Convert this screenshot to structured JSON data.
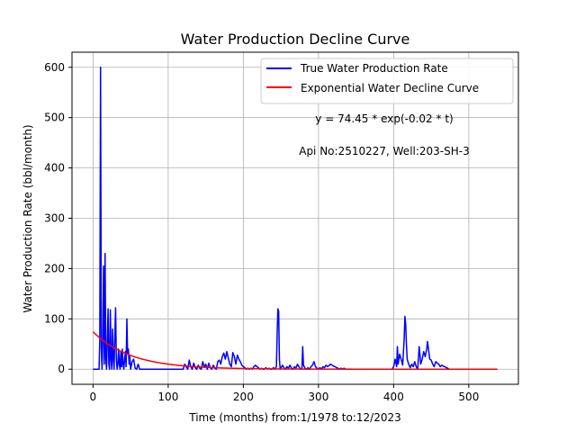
{
  "chart_data": {
    "type": "line",
    "title": "Water Production Decline Curve",
    "xlabel": "Time (months) from:1/1978 to:12/2023",
    "ylabel": "Water Production Rate (bbl/month)",
    "xlim": [
      -28,
      566
    ],
    "ylim": [
      -30,
      630
    ],
    "xticks": [
      0,
      100,
      200,
      300,
      400,
      500
    ],
    "yticks": [
      0,
      100,
      200,
      300,
      400,
      500,
      600
    ],
    "grid": true,
    "legend_position": "top-right",
    "annotations": [
      "y = 74.45 * exp(-0.02 * t)",
      "Api No:2510227, Well:203-SH-3"
    ],
    "series": [
      {
        "name": "True Water Production Rate",
        "color": "#0000ff",
        "kind": "observed",
        "points": [
          [
            0,
            0
          ],
          [
            8,
            0
          ],
          [
            9,
            60
          ],
          [
            10,
            600
          ],
          [
            11,
            40
          ],
          [
            12,
            0
          ],
          [
            13,
            60
          ],
          [
            14,
            205
          ],
          [
            15,
            10
          ],
          [
            16,
            230
          ],
          [
            17,
            20
          ],
          [
            18,
            0
          ],
          [
            19,
            60
          ],
          [
            20,
            120
          ],
          [
            21,
            10
          ],
          [
            22,
            0
          ],
          [
            23,
            118
          ],
          [
            24,
            20
          ],
          [
            25,
            0
          ],
          [
            26,
            80
          ],
          [
            27,
            20
          ],
          [
            28,
            0
          ],
          [
            29,
            65
          ],
          [
            30,
            122
          ],
          [
            31,
            20
          ],
          [
            32,
            0
          ],
          [
            33,
            10
          ],
          [
            34,
            40
          ],
          [
            35,
            10
          ],
          [
            36,
            0
          ],
          [
            37,
            35
          ],
          [
            38,
            5
          ],
          [
            39,
            40
          ],
          [
            40,
            10
          ],
          [
            41,
            0
          ],
          [
            42,
            20
          ],
          [
            43,
            35
          ],
          [
            44,
            5
          ],
          [
            45,
            100
          ],
          [
            46,
            30
          ],
          [
            47,
            40
          ],
          [
            48,
            10
          ],
          [
            49,
            25
          ],
          [
            50,
            0
          ],
          [
            52,
            15
          ],
          [
            54,
            20
          ],
          [
            56,
            2
          ],
          [
            58,
            0
          ],
          [
            60,
            10
          ],
          [
            62,
            0
          ],
          [
            64,
            0
          ],
          [
            120,
            0
          ],
          [
            122,
            10
          ],
          [
            124,
            5
          ],
          [
            126,
            0
          ],
          [
            128,
            18
          ],
          [
            130,
            5
          ],
          [
            132,
            0
          ],
          [
            134,
            12
          ],
          [
            136,
            3
          ],
          [
            138,
            0
          ],
          [
            140,
            8
          ],
          [
            142,
            2
          ],
          [
            144,
            0
          ],
          [
            146,
            15
          ],
          [
            148,
            4
          ],
          [
            150,
            10
          ],
          [
            152,
            0
          ],
          [
            154,
            12
          ],
          [
            156,
            3
          ],
          [
            158,
            0
          ],
          [
            160,
            8
          ],
          [
            162,
            2
          ],
          [
            164,
            0
          ],
          [
            166,
            15
          ],
          [
            168,
            18
          ],
          [
            170,
            10
          ],
          [
            172,
            25
          ],
          [
            174,
            32
          ],
          [
            176,
            20
          ],
          [
            178,
            35
          ],
          [
            180,
            22
          ],
          [
            182,
            10
          ],
          [
            184,
            5
          ],
          [
            186,
            33
          ],
          [
            188,
            25
          ],
          [
            190,
            10
          ],
          [
            192,
            28
          ],
          [
            194,
            20
          ],
          [
            196,
            15
          ],
          [
            198,
            8
          ],
          [
            200,
            5
          ],
          [
            202,
            3
          ],
          [
            204,
            0
          ],
          [
            206,
            2
          ],
          [
            208,
            0
          ],
          [
            210,
            2
          ],
          [
            212,
            0
          ],
          [
            214,
            5
          ],
          [
            216,
            8
          ],
          [
            218,
            5
          ],
          [
            220,
            3
          ],
          [
            222,
            0
          ],
          [
            224,
            2
          ],
          [
            226,
            0
          ],
          [
            228,
            0
          ],
          [
            230,
            3
          ],
          [
            232,
            0
          ],
          [
            234,
            2
          ],
          [
            236,
            0
          ],
          [
            238,
            0
          ],
          [
            240,
            3
          ],
          [
            242,
            0
          ],
          [
            244,
            5
          ],
          [
            245,
            70
          ],
          [
            246,
            120
          ],
          [
            247,
            115
          ],
          [
            248,
            20
          ],
          [
            249,
            0
          ],
          [
            250,
            2
          ],
          [
            252,
            8
          ],
          [
            254,
            3
          ],
          [
            256,
            0
          ],
          [
            258,
            5
          ],
          [
            260,
            2
          ],
          [
            262,
            8
          ],
          [
            264,
            2
          ],
          [
            266,
            0
          ],
          [
            268,
            5
          ],
          [
            270,
            2
          ],
          [
            272,
            10
          ],
          [
            274,
            5
          ],
          [
            276,
            0
          ],
          [
            278,
            2
          ],
          [
            279,
            45
          ],
          [
            280,
            8
          ],
          [
            282,
            2
          ],
          [
            284,
            0
          ],
          [
            286,
            3
          ],
          [
            288,
            0
          ],
          [
            290,
            5
          ],
          [
            292,
            8
          ],
          [
            294,
            15
          ],
          [
            296,
            5
          ],
          [
            298,
            2
          ],
          [
            300,
            0
          ],
          [
            302,
            3
          ],
          [
            304,
            0
          ],
          [
            306,
            5
          ],
          [
            308,
            3
          ],
          [
            310,
            8
          ],
          [
            312,
            5
          ],
          [
            314,
            7
          ],
          [
            316,
            10
          ],
          [
            318,
            8
          ],
          [
            320,
            6
          ],
          [
            322,
            5
          ],
          [
            324,
            3
          ],
          [
            326,
            2
          ],
          [
            328,
            0
          ],
          [
            330,
            2
          ],
          [
            332,
            0
          ],
          [
            334,
            2
          ],
          [
            336,
            0
          ],
          [
            338,
            0
          ],
          [
            340,
            0
          ],
          [
            398,
            0
          ],
          [
            400,
            5
          ],
          [
            402,
            20
          ],
          [
            404,
            5
          ],
          [
            405,
            45
          ],
          [
            406,
            10
          ],
          [
            408,
            30
          ],
          [
            410,
            20
          ],
          [
            412,
            8
          ],
          [
            414,
            60
          ],
          [
            415,
            105
          ],
          [
            416,
            90
          ],
          [
            417,
            50
          ],
          [
            418,
            20
          ],
          [
            420,
            10
          ],
          [
            422,
            3
          ],
          [
            424,
            10
          ],
          [
            426,
            5
          ],
          [
            428,
            15
          ],
          [
            430,
            5
          ],
          [
            432,
            0
          ],
          [
            434,
            45
          ],
          [
            435,
            30
          ],
          [
            436,
            10
          ],
          [
            438,
            20
          ],
          [
            440,
            35
          ],
          [
            442,
            25
          ],
          [
            444,
            40
          ],
          [
            445,
            55
          ],
          [
            446,
            45
          ],
          [
            448,
            20
          ],
          [
            450,
            18
          ],
          [
            452,
            10
          ],
          [
            454,
            5
          ],
          [
            456,
            15
          ],
          [
            458,
            12
          ],
          [
            460,
            10
          ],
          [
            462,
            5
          ],
          [
            464,
            8
          ],
          [
            466,
            6
          ],
          [
            468,
            5
          ],
          [
            470,
            3
          ],
          [
            472,
            2
          ],
          [
            474,
            0
          ],
          [
            476,
            0
          ]
        ]
      },
      {
        "name": "Exponential Water Decline Curve",
        "color": "#ff0000",
        "kind": "exponential",
        "a": 74.45,
        "b": -0.02,
        "t_range": [
          0,
          538
        ]
      }
    ]
  }
}
